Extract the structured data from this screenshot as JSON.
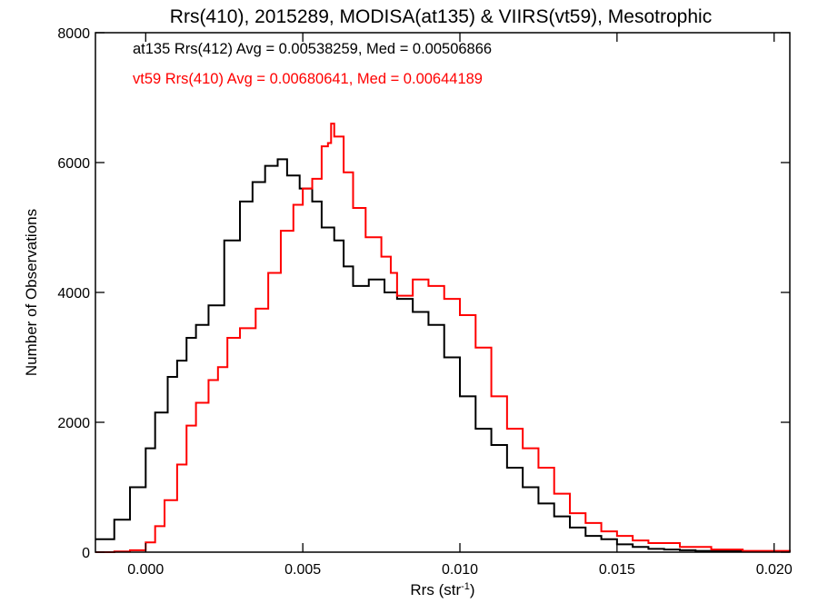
{
  "chart_data": {
    "type": "line",
    "step": true,
    "title": "Rrs(410), 2015289, MODISA(at135) & VIIRS(vt59), Mesotrophic",
    "xlabel": "Rrs (str",
    "xlabel_sup": "-1",
    "xlabel_close": ")",
    "ylabel": "Number of Observations",
    "xlim": [
      -0.0016,
      0.0205
    ],
    "ylim": [
      0,
      8000
    ],
    "x_ticks": [
      0.0,
      0.005,
      0.01,
      0.015,
      0.02
    ],
    "x_tick_labels": [
      "0.000",
      "0.005",
      "0.010",
      "0.015",
      "0.020"
    ],
    "y_ticks": [
      0,
      2000,
      4000,
      6000,
      8000
    ],
    "y_tick_labels": [
      "0",
      "2000",
      "4000",
      "6000",
      "8000"
    ],
    "annotations": [
      {
        "text": "at135 Rrs(412) Avg = 0.00538259, Med = 0.00506866",
        "color": "#000000"
      },
      {
        "text": "vt59 Rrs(410) Avg = 0.00680641, Med = 0.00644189",
        "color": "#ff0000"
      }
    ],
    "series": [
      {
        "color": "#000000",
        "x": [
          -0.0016,
          -0.001,
          -0.0005,
          0.0,
          0.0003,
          0.0007,
          0.001,
          0.0013,
          0.0016,
          0.002,
          0.0025,
          0.003,
          0.0034,
          0.0038,
          0.0042,
          0.0045,
          0.0049,
          0.0053,
          0.0056,
          0.006,
          0.0063,
          0.0066,
          0.0071,
          0.0076,
          0.008,
          0.0085,
          0.009,
          0.0095,
          0.01,
          0.0105,
          0.011,
          0.0115,
          0.012,
          0.0125,
          0.013,
          0.0135,
          0.014,
          0.0145,
          0.015,
          0.0155,
          0.016,
          0.0165,
          0.017,
          0.0175,
          0.018,
          0.019,
          0.0205
        ],
        "y": [
          200,
          500,
          1000,
          1600,
          2150,
          2700,
          2950,
          3300,
          3500,
          3800,
          4800,
          5400,
          5700,
          5950,
          6050,
          5800,
          5600,
          5400,
          5000,
          4800,
          4400,
          4100,
          4200,
          4000,
          3900,
          3700,
          3500,
          3000,
          2400,
          1900,
          1650,
          1300,
          1000,
          750,
          550,
          380,
          250,
          200,
          120,
          80,
          50,
          40,
          30,
          20,
          15,
          10,
          5
        ]
      },
      {
        "color": "#ff0000",
        "x": [
          -0.0016,
          -0.001,
          -0.0005,
          0.0,
          0.0003,
          0.0006,
          0.001,
          0.0013,
          0.0016,
          0.002,
          0.0023,
          0.0026,
          0.003,
          0.0035,
          0.0039,
          0.0043,
          0.0047,
          0.005,
          0.0053,
          0.0056,
          0.0058,
          0.0059,
          0.006,
          0.0063,
          0.0066,
          0.007,
          0.0075,
          0.0078,
          0.008,
          0.0085,
          0.009,
          0.0095,
          0.01,
          0.0105,
          0.011,
          0.0115,
          0.012,
          0.0125,
          0.013,
          0.0135,
          0.014,
          0.0145,
          0.015,
          0.0155,
          0.016,
          0.017,
          0.018,
          0.019,
          0.0205
        ],
        "y": [
          0,
          10,
          30,
          150,
          400,
          800,
          1350,
          1950,
          2300,
          2650,
          2850,
          3300,
          3450,
          3750,
          4300,
          4950,
          5350,
          5600,
          5750,
          6250,
          6300,
          6600,
          6400,
          5850,
          5300,
          4850,
          4550,
          4300,
          3950,
          4200,
          4100,
          3900,
          3650,
          3150,
          2400,
          1900,
          1600,
          1300,
          900,
          600,
          450,
          320,
          250,
          180,
          140,
          80,
          40,
          20,
          10
        ]
      }
    ]
  }
}
